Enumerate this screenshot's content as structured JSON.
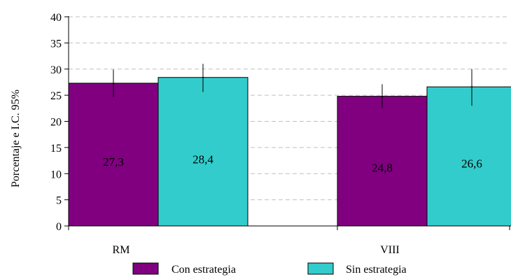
{
  "chart_data": {
    "type": "bar",
    "title": "",
    "xlabel": "",
    "ylabel": "Porcentaje e I.C. 95%",
    "categories": [
      "RM",
      "VIII"
    ],
    "series": [
      {
        "name": "Con estrategia",
        "color": "#800080",
        "values": [
          27.3,
          24.8
        ],
        "value_labels": [
          "27,3",
          "24,8"
        ],
        "ci_low": [
          24.6,
          22.6
        ],
        "ci_high": [
          29.9,
          27.1
        ]
      },
      {
        "name": "Sin estrategia",
        "color": "#33cccc",
        "values": [
          28.4,
          26.6
        ],
        "value_labels": [
          "28,4",
          "26,6"
        ],
        "ci_low": [
          25.6,
          23.0
        ],
        "ci_high": [
          31.0,
          30.0
        ]
      }
    ],
    "ylim": [
      0,
      40
    ],
    "yticks": [
      0,
      5,
      10,
      15,
      20,
      25,
      30,
      35,
      40
    ],
    "grid": true,
    "legend_position": "bottom"
  }
}
